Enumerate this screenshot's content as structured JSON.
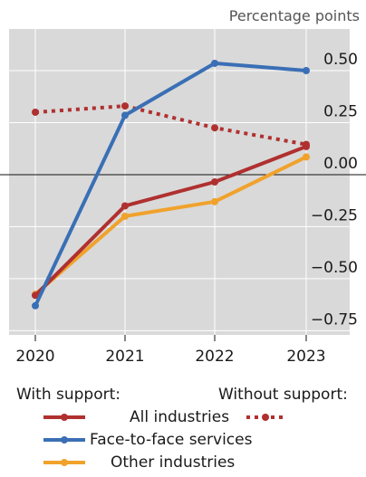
{
  "chart_data": {
    "type": "line",
    "unit_label": "Percentage points",
    "x": [
      "2020",
      "2021",
      "2022",
      "2023"
    ],
    "ylim": [
      -0.77,
      0.7
    ],
    "yticks": [
      0.5,
      0.25,
      0.0,
      -0.25,
      -0.5,
      -0.75
    ],
    "ytick_labels": [
      "0.50",
      "0.25",
      "0.00",
      "−0.25",
      "−0.50",
      "−0.75"
    ],
    "grid": true,
    "series": [
      {
        "name": "All industries",
        "group": "with",
        "values": [
          -0.58,
          -0.15,
          -0.035,
          0.135
        ],
        "color": "#b03030",
        "dash": "solid"
      },
      {
        "name": "Face-to-face services",
        "group": "with",
        "values": [
          -0.63,
          0.285,
          0.535,
          0.5
        ],
        "color": "#3a6fb5",
        "dash": "solid"
      },
      {
        "name": "Other industries",
        "group": "with",
        "values": [
          -0.575,
          -0.2,
          -0.13,
          0.085
        ],
        "color": "#f0a22c",
        "dash": "solid"
      },
      {
        "name": "All industries",
        "group": "without",
        "values": [
          0.3,
          0.33,
          0.225,
          0.145
        ],
        "color": "#b03030",
        "dash": "dotted"
      }
    ]
  },
  "legend": {
    "with_support_label": "With support:",
    "without_support_label": "Without support:",
    "all_industries": "All industries",
    "face_to_face": "Face-to-face services",
    "other_industries": "Other industries"
  },
  "colors": {
    "plot_bg": "#d9d9d9",
    "grid": "#ffffff"
  }
}
